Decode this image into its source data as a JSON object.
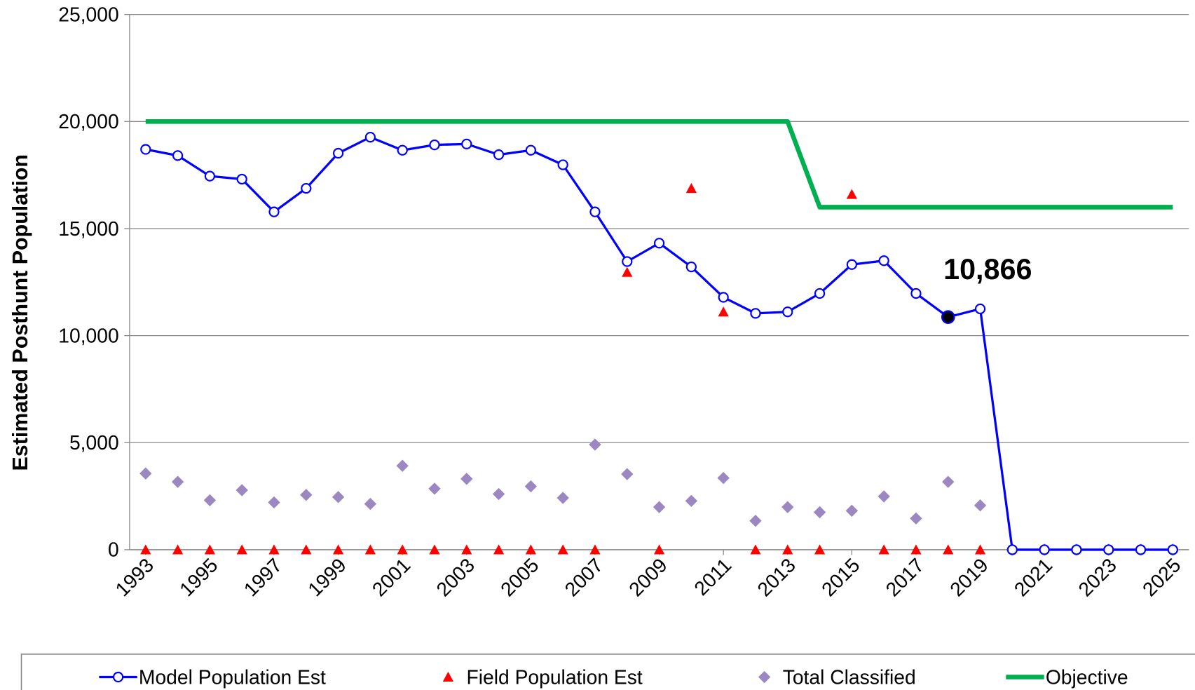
{
  "chart_data": {
    "type": "line",
    "y_label": "Estimated Posthunt Population",
    "x": [
      1993,
      1994,
      1995,
      1996,
      1997,
      1998,
      1999,
      2000,
      2001,
      2002,
      2003,
      2004,
      2005,
      2006,
      2007,
      2008,
      2009,
      2010,
      2011,
      2012,
      2013,
      2014,
      2015,
      2016,
      2017,
      2018,
      2019,
      2020,
      2021,
      2022,
      2023,
      2024,
      2025
    ],
    "xlim": [
      1992.5,
      2025.5
    ],
    "xticks": [
      1993,
      1995,
      1997,
      1999,
      2001,
      2003,
      2005,
      2007,
      2009,
      2011,
      2013,
      2015,
      2017,
      2019,
      2021,
      2023,
      2025
    ],
    "ylim": [
      0,
      25000
    ],
    "yticks": [
      0,
      {
        "value": 5000,
        "label": "5,000"
      },
      {
        "value": 10000,
        "label": "10,000"
      },
      {
        "value": 15000,
        "label": "15,000"
      },
      {
        "value": 20000,
        "label": "20,000"
      },
      {
        "value": 25000,
        "label": "25,000"
      }
    ],
    "grid": true,
    "legend": "bottom",
    "series": [
      {
        "name": "Model Population Est",
        "color": "#0000ff",
        "marker": "circle",
        "line": true,
        "values": [
          18700,
          18410,
          17450,
          17310,
          15780,
          16880,
          18520,
          19270,
          18660,
          18910,
          18950,
          18450,
          18660,
          17980,
          15780,
          13460,
          14320,
          13210,
          11790,
          11040,
          11110,
          11970,
          13320,
          13500,
          11970,
          10866,
          11250,
          0,
          0,
          0,
          0,
          0,
          0
        ]
      },
      {
        "name": "Field Population Est",
        "color": "#ff0000",
        "marker": "triangle",
        "line": false,
        "values": [
          0,
          0,
          0,
          0,
          0,
          0,
          0,
          0,
          0,
          0,
          0,
          0,
          0,
          0,
          0,
          12960,
          0,
          16880,
          11110,
          0,
          0,
          0,
          16600,
          0,
          0,
          0,
          0,
          null,
          null,
          null,
          null,
          null,
          null
        ]
      },
      {
        "name": "Total Classified",
        "color": "#9b88c0",
        "marker": "diamond",
        "line": false,
        "values": [
          3560,
          3170,
          2310,
          2780,
          2210,
          2560,
          2460,
          2140,
          3920,
          2850,
          3310,
          2600,
          2960,
          2420,
          4910,
          3530,
          1990,
          2280,
          3350,
          1350,
          1990,
          1750,
          1820,
          2490,
          1460,
          3170,
          2070,
          0,
          0,
          0,
          0,
          0,
          0
        ]
      },
      {
        "name": "Objective",
        "color": "#00b050",
        "marker": "none",
        "line": true,
        "values": [
          20000,
          20000,
          20000,
          20000,
          20000,
          20000,
          20000,
          20000,
          20000,
          20000,
          20000,
          20000,
          20000,
          20000,
          20000,
          20000,
          20000,
          20000,
          20000,
          20000,
          20000,
          16000,
          16000,
          16000,
          16000,
          16000,
          16000,
          16000,
          16000,
          16000,
          16000,
          16000,
          16000
        ]
      }
    ],
    "annotations": [
      {
        "text": "10,866",
        "x": 2018,
        "y": 10866
      }
    ]
  }
}
